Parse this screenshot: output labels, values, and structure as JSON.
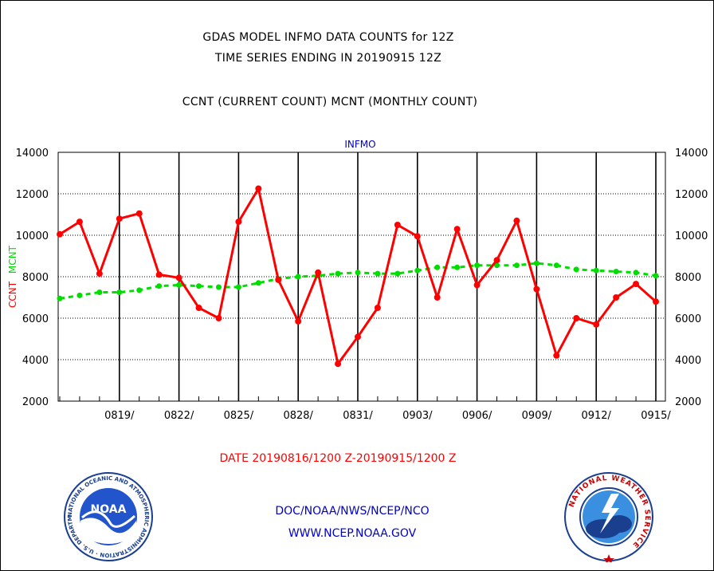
{
  "title_line1": "GDAS MODEL INFMO DATA COUNTS for 12Z",
  "title_line2": "TIME SERIES ENDING IN 20190915 12Z",
  "subtitle": "CCNT (CURRENT COUNT) MCNT (MONTHLY COUNT)",
  "date_range": "DATE 20190816/1200 Z-20190915/1200 Z",
  "credit_line1": "DOC/NOAA/NWS/NCEP/NCO",
  "credit_line2": "WWW.NCEP.NOAA.GOV",
  "logos": {
    "noaa_text": "NOAA",
    "noaa_ring_text": "NATIONAL OCEANIC AND ATMOSPHERIC ADMINISTRATION · U.S. DEPARTMENT OF COMMERCE",
    "nws_ring_text": "NATIONAL WEATHER SERVICE"
  },
  "chart_data": {
    "type": "line",
    "title": "INFMO",
    "ylabel_left_ccnt": "CCNT",
    "ylabel_left_mcnt": "MCNT",
    "ylim": [
      2000,
      14000
    ],
    "yticks": [
      2000,
      4000,
      6000,
      8000,
      10000,
      12000,
      14000
    ],
    "ytick_labels": [
      "2000",
      "4000",
      "6000",
      "8000",
      "10000",
      "12000",
      "14000"
    ],
    "xlim": [
      "2019-08-16",
      "2019-09-15"
    ],
    "xtick_labels": [
      "0819/",
      "0822/",
      "0825/",
      "0828/",
      "0831/",
      "0903/",
      "0906/",
      "0909/",
      "0912/",
      "0915/"
    ],
    "grid": true,
    "colors": {
      "ccnt": "#ff0000",
      "mcnt": "#00dd00",
      "axis_title": "#0000cc"
    },
    "series": [
      {
        "name": "CCNT",
        "style": "solid-markers",
        "x": [
          "2019-08-16",
          "2019-08-17",
          "2019-08-18",
          "2019-08-19",
          "2019-08-20",
          "2019-08-21",
          "2019-08-22",
          "2019-08-23",
          "2019-08-24",
          "2019-08-25",
          "2019-08-26",
          "2019-08-27",
          "2019-08-28",
          "2019-08-29",
          "2019-08-30",
          "2019-08-31",
          "2019-09-01",
          "2019-09-02",
          "2019-09-03",
          "2019-09-04",
          "2019-09-05",
          "2019-09-06",
          "2019-09-07",
          "2019-09-08",
          "2019-09-09",
          "2019-09-10",
          "2019-09-11",
          "2019-09-12",
          "2019-09-13",
          "2019-09-14",
          "2019-09-15"
        ],
        "values": [
          10050,
          10650,
          8150,
          10800,
          11050,
          8100,
          7950,
          6500,
          6000,
          10650,
          12250,
          7850,
          5850,
          8200,
          3800,
          5100,
          6500,
          10500,
          9950,
          7000,
          10300,
          7600,
          8800,
          10700,
          7400,
          4200,
          6000,
          5700,
          7000,
          7650,
          6800
        ]
      },
      {
        "name": "MCNT",
        "style": "dashed-markers",
        "x": [
          "2019-08-16",
          "2019-08-17",
          "2019-08-18",
          "2019-08-19",
          "2019-08-20",
          "2019-08-21",
          "2019-08-22",
          "2019-08-23",
          "2019-08-24",
          "2019-08-25",
          "2019-08-26",
          "2019-08-27",
          "2019-08-28",
          "2019-08-29",
          "2019-08-30",
          "2019-08-31",
          "2019-09-01",
          "2019-09-02",
          "2019-09-03",
          "2019-09-04",
          "2019-09-05",
          "2019-09-06",
          "2019-09-07",
          "2019-09-08",
          "2019-09-09",
          "2019-09-10",
          "2019-09-11",
          "2019-09-12",
          "2019-09-13",
          "2019-09-14",
          "2019-09-15"
        ],
        "values": [
          6950,
          7100,
          7250,
          7250,
          7350,
          7550,
          7600,
          7550,
          7500,
          7500,
          7700,
          7900,
          8000,
          8050,
          8150,
          8200,
          8150,
          8150,
          8300,
          8450,
          8450,
          8550,
          8550,
          8550,
          8650,
          8550,
          8350,
          8300,
          8250,
          8200,
          8050
        ]
      }
    ]
  }
}
